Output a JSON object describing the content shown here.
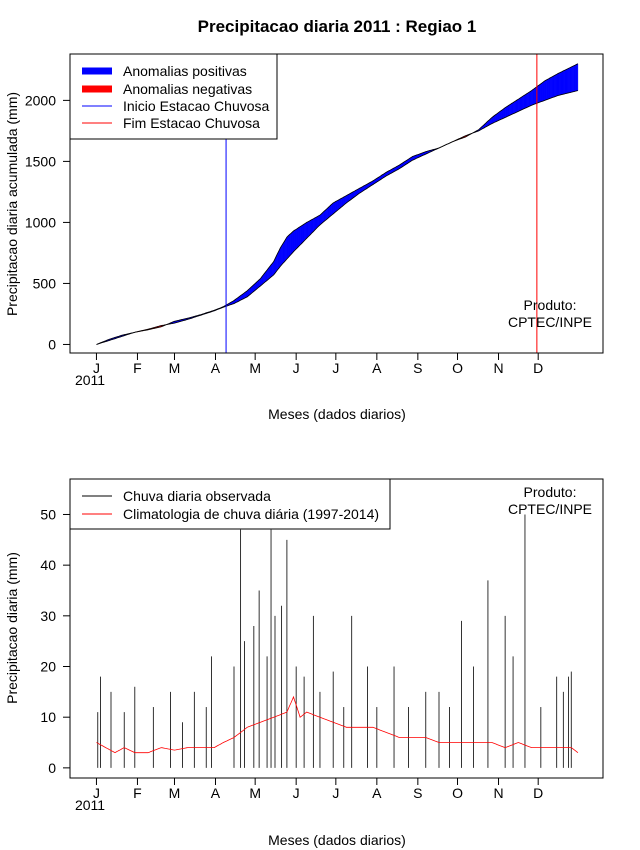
{
  "chart_data": [
    {
      "type": "area",
      "title": "Precipitacao diaria 2011 : Regiao 1",
      "xlabel": "Meses (dados diarios)",
      "ylabel": "Precipitacao diaria acumulada (mm)",
      "year_label": "2011",
      "credit_line1": "Produto:",
      "credit_line2": "CPTEC/INPE",
      "x_ticks": [
        {
          "label": "J",
          "day": 1
        },
        {
          "label": "F",
          "day": 32
        },
        {
          "label": "M",
          "day": 60
        },
        {
          "label": "A",
          "day": 91
        },
        {
          "label": "M",
          "day": 121
        },
        {
          "label": "J",
          "day": 152
        },
        {
          "label": "J",
          "day": 182
        },
        {
          "label": "A",
          "day": 213
        },
        {
          "label": "S",
          "day": 244
        },
        {
          "label": "O",
          "day": 274
        },
        {
          "label": "N",
          "day": 305
        },
        {
          "label": "D",
          "day": 335
        }
      ],
      "xlim": [
        -19,
        384
      ],
      "ylim": [
        -70,
        2380
      ],
      "y_ticks": [
        0,
        500,
        1000,
        1500,
        2000
      ],
      "legend": [
        {
          "label": "Anomalias positivas",
          "color": "#0000ff",
          "style": "thick"
        },
        {
          "label": "Anomalias negativas",
          "color": "#ff0000",
          "style": "thick"
        },
        {
          "label": "Inicio Estacao Chuvosa",
          "color": "#0000ff",
          "style": "thin"
        },
        {
          "label": "Fim Estacao Chuvosa",
          "color": "#ff0000",
          "style": "thin"
        }
      ],
      "rainy_season_start_day": 99,
      "rainy_season_end_day": 334,
      "observed_cumulative": [
        [
          1,
          0
        ],
        [
          10,
          40
        ],
        [
          20,
          75
        ],
        [
          30,
          100
        ],
        [
          40,
          120
        ],
        [
          50,
          145
        ],
        [
          60,
          190
        ],
        [
          70,
          215
        ],
        [
          80,
          245
        ],
        [
          90,
          280
        ],
        [
          97,
          310
        ],
        [
          105,
          360
        ],
        [
          115,
          440
        ],
        [
          125,
          540
        ],
        [
          135,
          680
        ],
        [
          140,
          790
        ],
        [
          145,
          880
        ],
        [
          150,
          930
        ],
        [
          160,
          1000
        ],
        [
          170,
          1060
        ],
        [
          180,
          1160
        ],
        [
          190,
          1220
        ],
        [
          200,
          1280
        ],
        [
          210,
          1340
        ],
        [
          220,
          1410
        ],
        [
          230,
          1470
        ],
        [
          240,
          1540
        ],
        [
          250,
          1580
        ],
        [
          260,
          1610
        ],
        [
          270,
          1660
        ],
        [
          280,
          1700
        ],
        [
          290,
          1760
        ],
        [
          300,
          1860
        ],
        [
          310,
          1940
        ],
        [
          320,
          2010
        ],
        [
          330,
          2080
        ],
        [
          340,
          2160
        ],
        [
          350,
          2220
        ],
        [
          365,
          2300
        ]
      ],
      "climatology_cumulative": [
        [
          1,
          0
        ],
        [
          10,
          30
        ],
        [
          20,
          65
        ],
        [
          30,
          100
        ],
        [
          40,
          125
        ],
        [
          50,
          155
        ],
        [
          60,
          175
        ],
        [
          70,
          205
        ],
        [
          80,
          240
        ],
        [
          90,
          275
        ],
        [
          97,
          305
        ],
        [
          105,
          335
        ],
        [
          115,
          390
        ],
        [
          125,
          480
        ],
        [
          135,
          570
        ],
        [
          140,
          640
        ],
        [
          145,
          700
        ],
        [
          150,
          760
        ],
        [
          160,
          870
        ],
        [
          170,
          980
        ],
        [
          180,
          1070
        ],
        [
          190,
          1160
        ],
        [
          200,
          1240
        ],
        [
          210,
          1310
        ],
        [
          220,
          1380
        ],
        [
          230,
          1440
        ],
        [
          240,
          1510
        ],
        [
          250,
          1560
        ],
        [
          260,
          1610
        ],
        [
          270,
          1660
        ],
        [
          280,
          1710
        ],
        [
          290,
          1750
        ],
        [
          300,
          1810
        ],
        [
          310,
          1860
        ],
        [
          320,
          1910
        ],
        [
          330,
          1960
        ],
        [
          340,
          2000
        ],
        [
          350,
          2040
        ],
        [
          365,
          2080
        ]
      ]
    },
    {
      "type": "bar",
      "title": "",
      "xlabel": "Meses (dados diarios)",
      "ylabel": "Precipitacao diaria (mm)",
      "year_label": "2011",
      "credit_line1": "Produto:",
      "credit_line2": "CPTEC/INPE",
      "x_ticks": [
        {
          "label": "J",
          "day": 1
        },
        {
          "label": "F",
          "day": 32
        },
        {
          "label": "M",
          "day": 60
        },
        {
          "label": "A",
          "day": 91
        },
        {
          "label": "M",
          "day": 121
        },
        {
          "label": "J",
          "day": 152
        },
        {
          "label": "J",
          "day": 182
        },
        {
          "label": "A",
          "day": 213
        },
        {
          "label": "S",
          "day": 244
        },
        {
          "label": "O",
          "day": 274
        },
        {
          "label": "N",
          "day": 305
        },
        {
          "label": "D",
          "day": 335
        }
      ],
      "xlim": [
        -19,
        384
      ],
      "ylim": [
        -2,
        57
      ],
      "y_ticks": [
        0,
        10,
        20,
        30,
        40,
        50
      ],
      "legend": [
        {
          "label": "Chuva diaria observada",
          "color": "#000000",
          "style": "thin"
        },
        {
          "label": "Climatologia de chuva diária (1997-2014)",
          "color": "#ff0000",
          "style": "thin"
        }
      ],
      "observed_peaks": [
        [
          2,
          11
        ],
        [
          4,
          18
        ],
        [
          12,
          15
        ],
        [
          22,
          11
        ],
        [
          30,
          16
        ],
        [
          44,
          12
        ],
        [
          57,
          15
        ],
        [
          66,
          9
        ],
        [
          75,
          15
        ],
        [
          84,
          12
        ],
        [
          88,
          22
        ],
        [
          105,
          20
        ],
        [
          110,
          47
        ],
        [
          113,
          25
        ],
        [
          120,
          28
        ],
        [
          124,
          35
        ],
        [
          130,
          22
        ],
        [
          133,
          47
        ],
        [
          136,
          30
        ],
        [
          141,
          32
        ],
        [
          145,
          45
        ],
        [
          152,
          20
        ],
        [
          158,
          18
        ],
        [
          165,
          30
        ],
        [
          170,
          15
        ],
        [
          180,
          19
        ],
        [
          188,
          12
        ],
        [
          194,
          30
        ],
        [
          206,
          20
        ],
        [
          213,
          12
        ],
        [
          226,
          20
        ],
        [
          237,
          12
        ],
        [
          250,
          15
        ],
        [
          260,
          15
        ],
        [
          268,
          12
        ],
        [
          277,
          29
        ],
        [
          286,
          20
        ],
        [
          297,
          37
        ],
        [
          310,
          30
        ],
        [
          316,
          22
        ],
        [
          325,
          50
        ],
        [
          337,
          12
        ],
        [
          349,
          18
        ],
        [
          354,
          15
        ],
        [
          358,
          18
        ],
        [
          360,
          19
        ]
      ],
      "climatology_daily": [
        [
          1,
          5
        ],
        [
          8,
          4
        ],
        [
          15,
          3
        ],
        [
          22,
          4
        ],
        [
          30,
          3
        ],
        [
          40,
          3
        ],
        [
          50,
          4
        ],
        [
          60,
          3.5
        ],
        [
          70,
          4
        ],
        [
          80,
          4
        ],
        [
          90,
          4
        ],
        [
          97,
          5
        ],
        [
          105,
          6
        ],
        [
          115,
          8
        ],
        [
          125,
          9
        ],
        [
          135,
          10
        ],
        [
          145,
          11
        ],
        [
          150,
          14
        ],
        [
          155,
          10
        ],
        [
          160,
          11
        ],
        [
          170,
          10
        ],
        [
          180,
          9
        ],
        [
          190,
          8
        ],
        [
          200,
          8
        ],
        [
          210,
          8
        ],
        [
          220,
          7
        ],
        [
          230,
          6
        ],
        [
          240,
          6
        ],
        [
          250,
          6
        ],
        [
          260,
          5
        ],
        [
          270,
          5
        ],
        [
          280,
          5
        ],
        [
          290,
          5
        ],
        [
          300,
          5
        ],
        [
          310,
          4
        ],
        [
          320,
          5
        ],
        [
          330,
          4
        ],
        [
          340,
          4
        ],
        [
          350,
          4
        ],
        [
          360,
          4
        ],
        [
          365,
          3
        ]
      ]
    }
  ]
}
